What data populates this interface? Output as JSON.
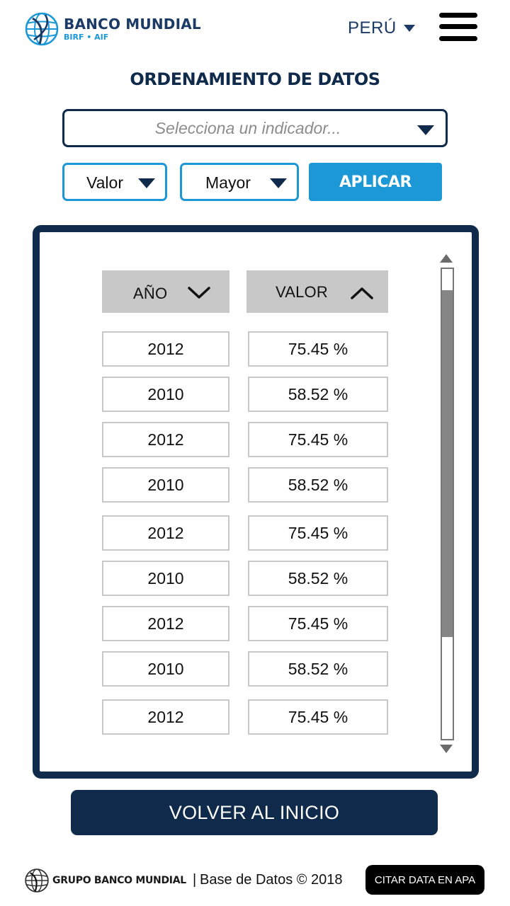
{
  "header": {
    "logo_title": "BANCO MUNDIAL",
    "logo_subtitle": "BIRF • AIF",
    "country": "PERÚ",
    "menu_icon": "hamburger-menu-icon"
  },
  "page_title": "ORDENAMIENTO DE DATOS",
  "indicator_select": {
    "placeholder": "Selecciona un indicador...",
    "value": ""
  },
  "filters": {
    "sort_field": "Valor",
    "sort_order": "Mayor",
    "apply_label": "APLICAR"
  },
  "table": {
    "columns": [
      {
        "label": "AÑO",
        "sort_icon": "chevron-down-icon"
      },
      {
        "label": "VALOR",
        "sort_icon": "chevron-up-icon"
      }
    ],
    "rows": [
      {
        "year": "2012",
        "value": "75.45 %"
      },
      {
        "year": "2010",
        "value": "58.52 %"
      },
      {
        "year": "2012",
        "value": "75.45 %"
      },
      {
        "year": "2010",
        "value": "58.52 %"
      },
      {
        "year": "2012",
        "value": "75.45 %"
      },
      {
        "year": "2010",
        "value": "58.52 %"
      },
      {
        "year": "2012",
        "value": "75.45 %"
      },
      {
        "year": "2010",
        "value": "58.52 %"
      },
      {
        "year": "2012",
        "value": "75.45 %"
      }
    ],
    "scroll_position": 0.2
  },
  "back_button": "VOLVER AL INICIO",
  "footer": {
    "org_name": "GRUPO BANCO MUNDIAL",
    "separator": "|",
    "copyright": "Base de Datos © 2018",
    "cite_button": "CITAR DATA EN APA"
  },
  "colors": {
    "navy": "#0f2a4b",
    "accent_blue": "#1c98d6",
    "header_gray": "#c8c8c8"
  }
}
